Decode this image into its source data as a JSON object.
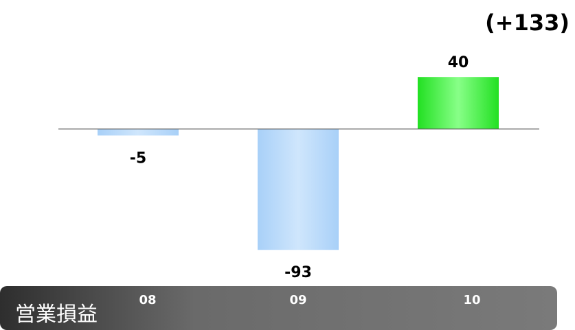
{
  "chart_data": {
    "type": "bar",
    "title": "営業損益",
    "categories": [
      "08",
      "09",
      "10"
    ],
    "values": [
      -5,
      -93,
      40
    ],
    "value_labels": [
      "-5",
      "-93",
      "40"
    ],
    "delta_label": "(+133)",
    "ylim": [
      -93,
      40
    ],
    "grid": false,
    "colors": {
      "negative_bar": "#a8d0f8",
      "negative_bar_light": "#cfe6fc",
      "positive_bar": "#33ee33",
      "positive_bar_light": "#88ff88",
      "band": "#707070",
      "band_dark": "#3a3a3a",
      "axis_line": "#555555"
    }
  }
}
